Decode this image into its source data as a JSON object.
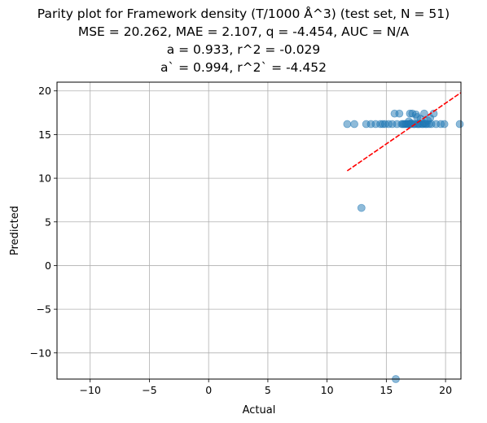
{
  "chart_data": {
    "type": "scatter",
    "title_lines": [
      "Parity plot for Framework density (T/1000 Å^3) (test set, N = 51)",
      "MSE = 20.262, MAE = 2.107, q = -4.454, AUC = N/A",
      "a = 0.933, r^2 = -0.029",
      "a` = 0.994, r^2` = -4.452"
    ],
    "xlabel": "Actual",
    "ylabel": "Predicted",
    "xlim": [
      -12.8,
      21.3
    ],
    "ylim": [
      -13.0,
      21.0
    ],
    "xticks": [
      -10,
      -5,
      0,
      5,
      10,
      15,
      20
    ],
    "yticks": [
      -10,
      -5,
      0,
      5,
      10,
      15,
      20
    ],
    "grid": true,
    "point_color": "#1f77b4",
    "fit_color": "#ff0000",
    "points": [
      [
        11.7,
        16.2
      ],
      [
        12.3,
        16.2
      ],
      [
        12.9,
        6.6
      ],
      [
        13.3,
        16.2
      ],
      [
        13.7,
        16.2
      ],
      [
        14.1,
        16.2
      ],
      [
        14.5,
        16.2
      ],
      [
        14.7,
        16.2
      ],
      [
        15.2,
        16.2
      ],
      [
        15.5,
        16.2
      ],
      [
        15.7,
        17.4
      ],
      [
        15.9,
        16.2
      ],
      [
        16.1,
        17.4
      ],
      [
        16.3,
        16.2
      ],
      [
        16.5,
        16.2
      ],
      [
        16.6,
        16.2
      ],
      [
        16.7,
        16.2
      ],
      [
        16.8,
        16.2
      ],
      [
        16.9,
        16.2
      ],
      [
        17.0,
        17.4
      ],
      [
        17.0,
        16.2
      ],
      [
        17.1,
        16.2
      ],
      [
        17.2,
        17.4
      ],
      [
        17.3,
        16.2
      ],
      [
        17.4,
        16.2
      ],
      [
        17.5,
        17.3
      ],
      [
        17.6,
        16.2
      ],
      [
        17.7,
        16.2
      ],
      [
        17.8,
        16.2
      ],
      [
        17.9,
        16.8
      ],
      [
        18.0,
        16.2
      ],
      [
        18.1,
        16.2
      ],
      [
        18.2,
        17.4
      ],
      [
        18.3,
        16.2
      ],
      [
        18.4,
        16.2
      ],
      [
        18.5,
        16.6
      ],
      [
        18.6,
        16.2
      ],
      [
        18.8,
        16.2
      ],
      [
        19.0,
        17.4
      ],
      [
        19.2,
        16.2
      ],
      [
        19.6,
        16.2
      ],
      [
        19.9,
        16.2
      ],
      [
        21.2,
        16.2
      ],
      [
        15.8,
        -13.0
      ],
      [
        16.4,
        16.2
      ],
      [
        17.1,
        16.3
      ],
      [
        17.6,
        17.0
      ],
      [
        18.2,
        16.3
      ],
      [
        16.9,
        16.5
      ],
      [
        18.7,
        16.9
      ],
      [
        14.9,
        16.2
      ]
    ],
    "fit_line": {
      "x_start": 11.7,
      "x_end": 21.3,
      "slope": 0.933,
      "intercept": -0.07
    }
  }
}
